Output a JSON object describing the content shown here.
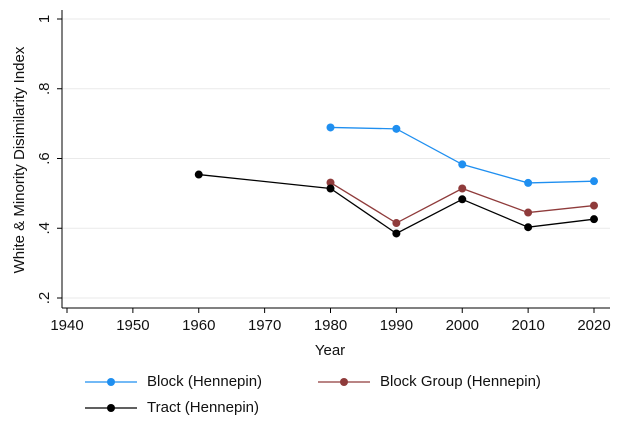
{
  "chart_data": {
    "type": "line",
    "x_label": "Year",
    "y_label": "White & Minority Disimilarity Index",
    "x": [
      1960,
      1980,
      1990,
      2000,
      2010,
      2020
    ],
    "series": [
      {
        "name": "Block (Hennepin)",
        "color": "#1f8ff0",
        "values": [
          null,
          0.689,
          0.685,
          0.583,
          0.53,
          0.535
        ]
      },
      {
        "name": "Block Group (Hennepin)",
        "color": "#8f3b3b",
        "values": [
          null,
          0.531,
          0.415,
          0.514,
          0.445,
          0.465
        ]
      },
      {
        "name": "Tract (Hennepin)",
        "color": "#000000",
        "values": [
          0.554,
          0.514,
          0.385,
          0.483,
          0.403,
          0.426
        ]
      }
    ],
    "xlim": [
      1940,
      2020
    ],
    "xticks": [
      1940,
      1950,
      1960,
      1970,
      1980,
      1990,
      2000,
      2010,
      2020
    ],
    "ylim": [
      0.2,
      1
    ],
    "yticks": [
      {
        "value": 0.2,
        "label": ".2"
      },
      {
        "value": 0.4,
        "label": ".4"
      },
      {
        "value": 0.6,
        "label": ".6"
      },
      {
        "value": 0.8,
        "label": ".8"
      },
      1
    ],
    "grid": true
  }
}
